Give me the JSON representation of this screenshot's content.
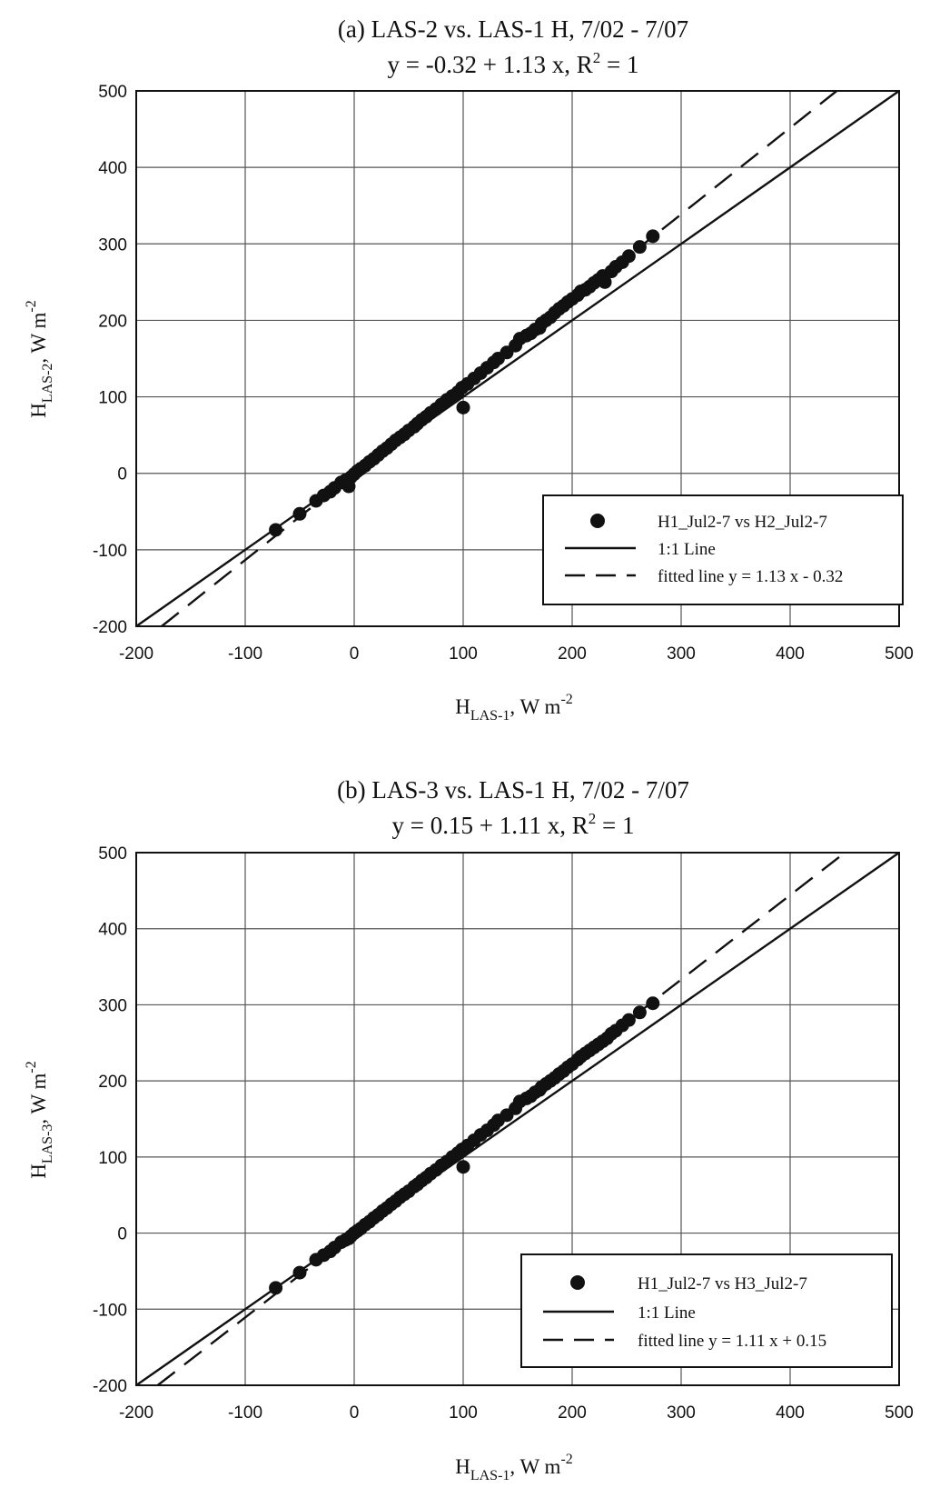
{
  "chart_data": [
    {
      "type": "scatter",
      "title": "(a) LAS-2 vs. LAS-1 H, 7/02 - 7/07",
      "subtitle": {
        "pre": "y = -0.32 + 1.13 x, R",
        "sup": "2",
        "post": " = 1"
      },
      "xlabel": {
        "main": "H",
        "sub": "LAS-1",
        "mid": ", W m",
        "sup": "-2"
      },
      "ylabel": {
        "main": "H",
        "sub": "LAS-2",
        "mid": ", W m",
        "sup": "-2"
      },
      "xlim": [
        -200,
        500
      ],
      "ylim": [
        -200,
        500
      ],
      "xticks": [
        -200,
        -100,
        0,
        100,
        200,
        300,
        400,
        500
      ],
      "yticks": [
        -200,
        -100,
        0,
        100,
        200,
        300,
        400,
        500
      ],
      "tick_labels": [
        "-200",
        "-100",
        "0",
        "100",
        "200",
        "300",
        "400",
        "500"
      ],
      "grid": true,
      "legend_position": "bottom-right",
      "fit": {
        "intercept": -0.32,
        "slope": 1.13
      },
      "series": [
        {
          "name": "H1_Jul2-7 vs H2_Jul2-7",
          "style": "points",
          "color": "#111111",
          "points": [
            [
              -72,
              -74
            ],
            [
              -50,
              -53
            ],
            [
              -35,
              -36
            ],
            [
              -28,
              -29
            ],
            [
              -22,
              -24
            ],
            [
              -18,
              -19
            ],
            [
              -12,
              -12
            ],
            [
              -8,
              -9
            ],
            [
              -5,
              -17
            ],
            [
              -3,
              -5
            ],
            [
              0,
              -1
            ],
            [
              3,
              3
            ],
            [
              6,
              6
            ],
            [
              10,
              10
            ],
            [
              14,
              15
            ],
            [
              18,
              19
            ],
            [
              22,
              24
            ],
            [
              26,
              29
            ],
            [
              30,
              33
            ],
            [
              34,
              38
            ],
            [
              38,
              43
            ],
            [
              42,
              47
            ],
            [
              46,
              51
            ],
            [
              50,
              56
            ],
            [
              55,
              61
            ],
            [
              58,
              65
            ],
            [
              62,
              70
            ],
            [
              66,
              74
            ],
            [
              70,
              79
            ],
            [
              75,
              84
            ],
            [
              80,
              90
            ],
            [
              85,
              96
            ],
            [
              90,
              101
            ],
            [
              95,
              106
            ],
            [
              99,
              112
            ],
            [
              100,
              86
            ],
            [
              104,
              117
            ],
            [
              110,
              124
            ],
            [
              116,
              131
            ],
            [
              122,
              138
            ],
            [
              128,
              145
            ],
            [
              132,
              150
            ],
            [
              140,
              158
            ],
            [
              148,
              167
            ],
            [
              152,
              176
            ],
            [
              158,
              180
            ],
            [
              162,
              183
            ],
            [
              166,
              188
            ],
            [
              170,
              190
            ],
            [
              172,
              196
            ],
            [
              176,
              200
            ],
            [
              180,
              204
            ],
            [
              184,
              210
            ],
            [
              188,
              215
            ],
            [
              192,
              219
            ],
            [
              196,
              224
            ],
            [
              200,
              228
            ],
            [
              205,
              233
            ],
            [
              208,
              238
            ],
            [
              212,
              240
            ],
            [
              216,
              244
            ],
            [
              220,
              249
            ],
            [
              224,
              253
            ],
            [
              228,
              258
            ],
            [
              230,
              250
            ],
            [
              236,
              264
            ],
            [
              240,
              270
            ],
            [
              246,
              276
            ],
            [
              252,
              284
            ],
            [
              262,
              296
            ],
            [
              274,
              310
            ]
          ]
        },
        {
          "name": "1:1 Line",
          "style": "solid",
          "color": "#111111"
        },
        {
          "name": "fitted line y = 1.13 x - 0.32",
          "style": "dashed",
          "color": "#111111"
        }
      ]
    },
    {
      "type": "scatter",
      "title": "(b) LAS-3 vs. LAS-1 H, 7/02 - 7/07",
      "subtitle": {
        "pre": "y = 0.15 + 1.11 x, R",
        "sup": "2",
        "post": " = 1"
      },
      "xlabel": {
        "main": "H",
        "sub": "LAS-1",
        "mid": ", W m",
        "sup": "-2"
      },
      "ylabel": {
        "main": "H",
        "sub": "LAS-3",
        "mid": ", W m",
        "sup": "-2"
      },
      "xlim": [
        -200,
        500
      ],
      "ylim": [
        -200,
        500
      ],
      "xticks": [
        -200,
        -100,
        0,
        100,
        200,
        300,
        400,
        500
      ],
      "yticks": [
        -200,
        -100,
        0,
        100,
        200,
        300,
        400,
        500
      ],
      "tick_labels": [
        "-200",
        "-100",
        "0",
        "100",
        "200",
        "300",
        "400",
        "500"
      ],
      "grid": true,
      "legend_position": "bottom-right",
      "fit": {
        "intercept": 0.15,
        "slope": 1.11
      },
      "series": [
        {
          "name": "H1_Jul2-7 vs H3_Jul2-7",
          "style": "points",
          "color": "#111111",
          "points": [
            [
              -72,
              -72
            ],
            [
              -50,
              -52
            ],
            [
              -35,
              -35
            ],
            [
              -28,
              -29
            ],
            [
              -22,
              -24
            ],
            [
              -18,
              -19
            ],
            [
              -12,
              -12
            ],
            [
              -8,
              -9
            ],
            [
              -5,
              -7
            ],
            [
              -3,
              -4
            ],
            [
              0,
              0
            ],
            [
              3,
              3
            ],
            [
              6,
              6
            ],
            [
              10,
              11
            ],
            [
              14,
              15
            ],
            [
              18,
              20
            ],
            [
              22,
              24
            ],
            [
              26,
              29
            ],
            [
              30,
              33
            ],
            [
              34,
              38
            ],
            [
              38,
              42
            ],
            [
              42,
              47
            ],
            [
              46,
              51
            ],
            [
              50,
              55
            ],
            [
              55,
              61
            ],
            [
              58,
              64
            ],
            [
              62,
              69
            ],
            [
              66,
              73
            ],
            [
              70,
              78
            ],
            [
              75,
              83
            ],
            [
              80,
              89
            ],
            [
              85,
              94
            ],
            [
              90,
              100
            ],
            [
              95,
              105
            ],
            [
              99,
              110
            ],
            [
              100,
              87
            ],
            [
              104,
              115
            ],
            [
              110,
              122
            ],
            [
              116,
              129
            ],
            [
              122,
              135
            ],
            [
              128,
              142
            ],
            [
              132,
              148
            ],
            [
              140,
              155
            ],
            [
              148,
              164
            ],
            [
              152,
              173
            ],
            [
              158,
              177
            ],
            [
              162,
              180
            ],
            [
              166,
              185
            ],
            [
              170,
              188
            ],
            [
              172,
              192
            ],
            [
              176,
              196
            ],
            [
              180,
              200
            ],
            [
              184,
              204
            ],
            [
              188,
              209
            ],
            [
              192,
              213
            ],
            [
              196,
              218
            ],
            [
              200,
              222
            ],
            [
              205,
              228
            ],
            [
              208,
              232
            ],
            [
              212,
              236
            ],
            [
              216,
              240
            ],
            [
              220,
              244
            ],
            [
              224,
              248
            ],
            [
              228,
              252
            ],
            [
              232,
              256
            ],
            [
              236,
              262
            ],
            [
              240,
              266
            ],
            [
              246,
              273
            ],
            [
              252,
              280
            ],
            [
              262,
              290
            ],
            [
              274,
              302
            ]
          ]
        },
        {
          "name": "1:1 Line",
          "style": "solid",
          "color": "#111111"
        },
        {
          "name": "fitted line y = 1.11 x + 0.15",
          "style": "dashed",
          "color": "#111111"
        }
      ]
    }
  ]
}
